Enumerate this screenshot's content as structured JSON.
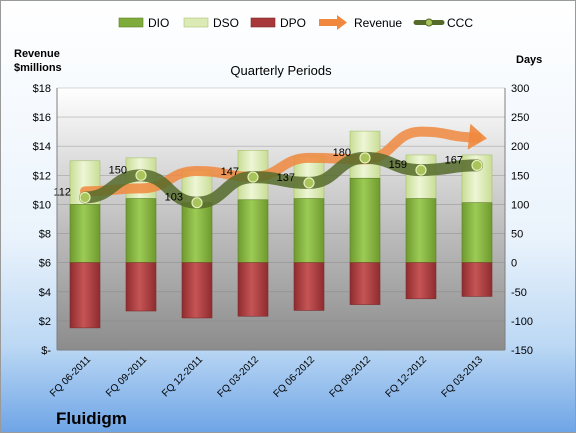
{
  "company": "Fluidigm",
  "chart_data": {
    "type": "bar",
    "subtitle": "Quarterly Periods",
    "y_left_label_line1": "Revenue",
    "y_left_label_line2": "$millions",
    "y_right_label": "Days",
    "categories": [
      "FQ 06-2011",
      "FQ 09-2011",
      "FQ 12-2011",
      "FQ 03-2012",
      "FQ 06-2012",
      "FQ 09-2012",
      "FQ 12-2012",
      "FQ 03-2013"
    ],
    "left_axis": {
      "min": 0,
      "max": 18,
      "step": 2,
      "tick_labels": [
        "$-",
        "$2",
        "$4",
        "$6",
        "$8",
        "$10",
        "$12",
        "$14",
        "$16",
        "$18"
      ]
    },
    "right_axis": {
      "min": -150,
      "max": 300,
      "step": 50,
      "tick_labels": [
        "-150",
        "-100",
        "-50",
        "0",
        "50",
        "100",
        "150",
        "200",
        "250",
        "300"
      ]
    },
    "grid": true,
    "legend_position": "top",
    "series": [
      {
        "name": "DIO",
        "kind": "stacked-bar",
        "axis": "right",
        "color": "#7fab3a",
        "values": [
          100,
          110,
          103,
          108,
          110,
          145,
          110,
          103
        ]
      },
      {
        "name": "DSO",
        "kind": "stacked-bar",
        "axis": "right",
        "color": "#dcebb5",
        "values": [
          75,
          70,
          56,
          85,
          73,
          81,
          75,
          82
        ]
      },
      {
        "name": "DPO",
        "kind": "bar-negative",
        "axis": "right",
        "color": "#a8393a",
        "values": [
          -112,
          -83,
          -95,
          -92,
          -82,
          -72,
          -62,
          -58
        ]
      },
      {
        "name": "Revenue",
        "kind": "line-arrow",
        "axis": "left",
        "color": "#f0883e",
        "values": [
          10.9,
          11.1,
          12.3,
          11.9,
          13.2,
          13.1,
          15.0,
          14.6
        ]
      },
      {
        "name": "CCC",
        "kind": "line-markers",
        "axis": "right",
        "color": "#566b2a",
        "values": [
          112,
          150,
          103,
          147,
          137,
          180,
          159,
          167
        ]
      }
    ],
    "ccc_labels": [
      "112",
      "150",
      "103",
      "147",
      "137",
      "180",
      "159",
      "167"
    ],
    "legend": [
      "DIO",
      "DSO",
      "DPO",
      "Revenue",
      "CCC"
    ]
  }
}
